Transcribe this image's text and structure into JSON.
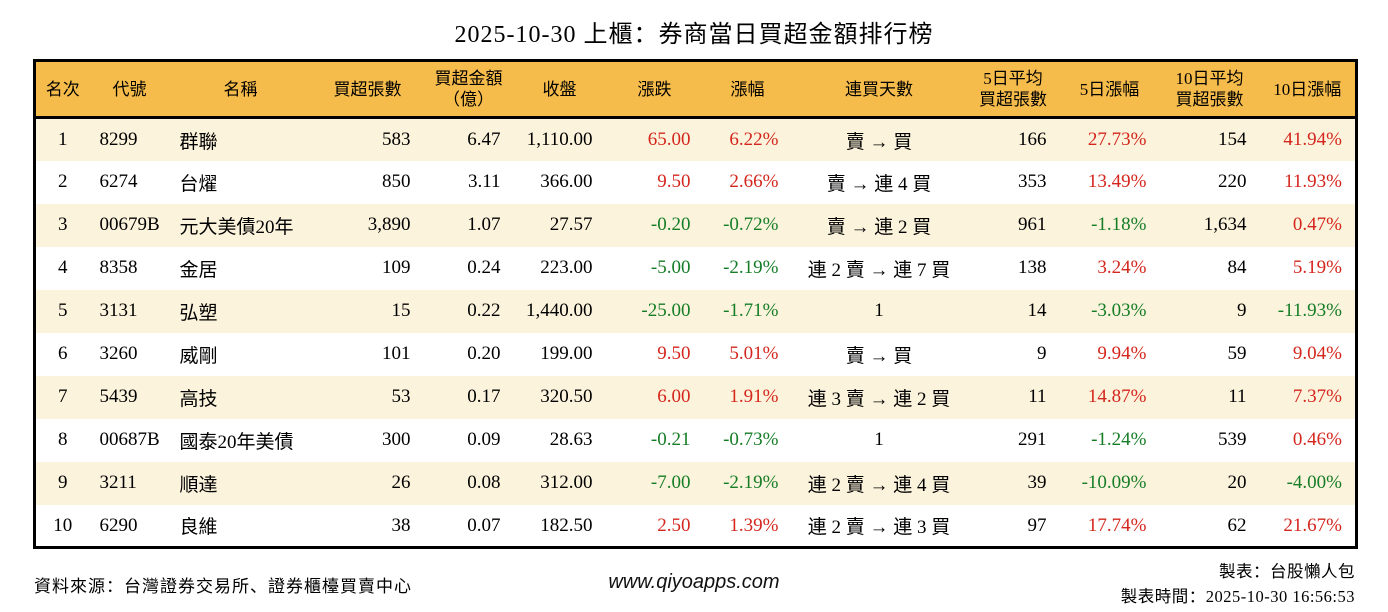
{
  "title": "2025-10-30 上櫃：券商當日買超金額排行榜",
  "table": {
    "headers": [
      "名次",
      "代號",
      "名稱",
      "買超張數",
      "買超金額\n（億）",
      "收盤",
      "漲跌",
      "漲幅",
      "連買天數",
      "5日平均\n買超張數",
      "5日漲幅",
      "10日平均\n買超張數",
      "10日漲幅"
    ],
    "rows": [
      {
        "rank": "1",
        "code": "8299",
        "name": "群聯",
        "volume": "583",
        "amount": "6.47",
        "close": "1,110.00",
        "change": "65.00",
        "change_dir": "up",
        "change_pct": "6.22%",
        "streak": "賣 → 買",
        "avg5": "166",
        "pct5": "27.73%",
        "pct5_dir": "up",
        "avg10": "154",
        "pct10": "41.94%",
        "pct10_dir": "up"
      },
      {
        "rank": "2",
        "code": "6274",
        "name": "台燿",
        "volume": "850",
        "amount": "3.11",
        "close": "366.00",
        "change": "9.50",
        "change_dir": "up",
        "change_pct": "2.66%",
        "streak": "賣 → 連 4 買",
        "avg5": "353",
        "pct5": "13.49%",
        "pct5_dir": "up",
        "avg10": "220",
        "pct10": "11.93%",
        "pct10_dir": "up"
      },
      {
        "rank": "3",
        "code": "00679B",
        "name": "元大美債20年",
        "volume": "3,890",
        "amount": "1.07",
        "close": "27.57",
        "change": "-0.20",
        "change_dir": "down",
        "change_pct": "-0.72%",
        "streak": "賣 → 連 2 買",
        "avg5": "961",
        "pct5": "-1.18%",
        "pct5_dir": "down",
        "avg10": "1,634",
        "pct10": "0.47%",
        "pct10_dir": "up"
      },
      {
        "rank": "4",
        "code": "8358",
        "name": "金居",
        "volume": "109",
        "amount": "0.24",
        "close": "223.00",
        "change": "-5.00",
        "change_dir": "down",
        "change_pct": "-2.19%",
        "streak": "連 2 賣 → 連 7 買",
        "avg5": "138",
        "pct5": "3.24%",
        "pct5_dir": "up",
        "avg10": "84",
        "pct10": "5.19%",
        "pct10_dir": "up"
      },
      {
        "rank": "5",
        "code": "3131",
        "name": "弘塑",
        "volume": "15",
        "amount": "0.22",
        "close": "1,440.00",
        "change": "-25.00",
        "change_dir": "down",
        "change_pct": "-1.71%",
        "streak": "1",
        "avg5": "14",
        "pct5": "-3.03%",
        "pct5_dir": "down",
        "avg10": "9",
        "pct10": "-11.93%",
        "pct10_dir": "down"
      },
      {
        "rank": "6",
        "code": "3260",
        "name": "威剛",
        "volume": "101",
        "amount": "0.20",
        "close": "199.00",
        "change": "9.50",
        "change_dir": "up",
        "change_pct": "5.01%",
        "streak": "賣 → 買",
        "avg5": "9",
        "pct5": "9.94%",
        "pct5_dir": "up",
        "avg10": "59",
        "pct10": "9.04%",
        "pct10_dir": "up"
      },
      {
        "rank": "7",
        "code": "5439",
        "name": "高技",
        "volume": "53",
        "amount": "0.17",
        "close": "320.50",
        "change": "6.00",
        "change_dir": "up",
        "change_pct": "1.91%",
        "streak": "連 3 賣 → 連 2 買",
        "avg5": "11",
        "pct5": "14.87%",
        "pct5_dir": "up",
        "avg10": "11",
        "pct10": "7.37%",
        "pct10_dir": "up"
      },
      {
        "rank": "8",
        "code": "00687B",
        "name": "國泰20年美債",
        "volume": "300",
        "amount": "0.09",
        "close": "28.63",
        "change": "-0.21",
        "change_dir": "down",
        "change_pct": "-0.73%",
        "streak": "1",
        "avg5": "291",
        "pct5": "-1.24%",
        "pct5_dir": "down",
        "avg10": "539",
        "pct10": "0.46%",
        "pct10_dir": "up"
      },
      {
        "rank": "9",
        "code": "3211",
        "name": "順達",
        "volume": "26",
        "amount": "0.08",
        "close": "312.00",
        "change": "-7.00",
        "change_dir": "down",
        "change_pct": "-2.19%",
        "streak": "連 2 賣 → 連 4 買",
        "avg5": "39",
        "pct5": "-10.09%",
        "pct5_dir": "down",
        "avg10": "20",
        "pct10": "-4.00%",
        "pct10_dir": "down"
      },
      {
        "rank": "10",
        "code": "6290",
        "name": "良維",
        "volume": "38",
        "amount": "0.07",
        "close": "182.50",
        "change": "2.50",
        "change_dir": "up",
        "change_pct": "1.39%",
        "streak": "連 2 賣 → 連 3 買",
        "avg5": "97",
        "pct5": "17.74%",
        "pct5_dir": "up",
        "avg10": "62",
        "pct10": "21.67%",
        "pct10_dir": "up"
      }
    ]
  },
  "footer": {
    "source": "資料來源：台灣證券交易所、證券櫃檯買賣中心",
    "website": "www.qiyoapps.com",
    "maker": "製表：台股懶人包",
    "made_time": "製表時間：2025-10-30 16:56:53"
  },
  "colors": {
    "up": "#d4261d",
    "down": "#157d26",
    "header_bg": "#f6bc4b",
    "row_alt_bg": "#fcf3dc"
  }
}
